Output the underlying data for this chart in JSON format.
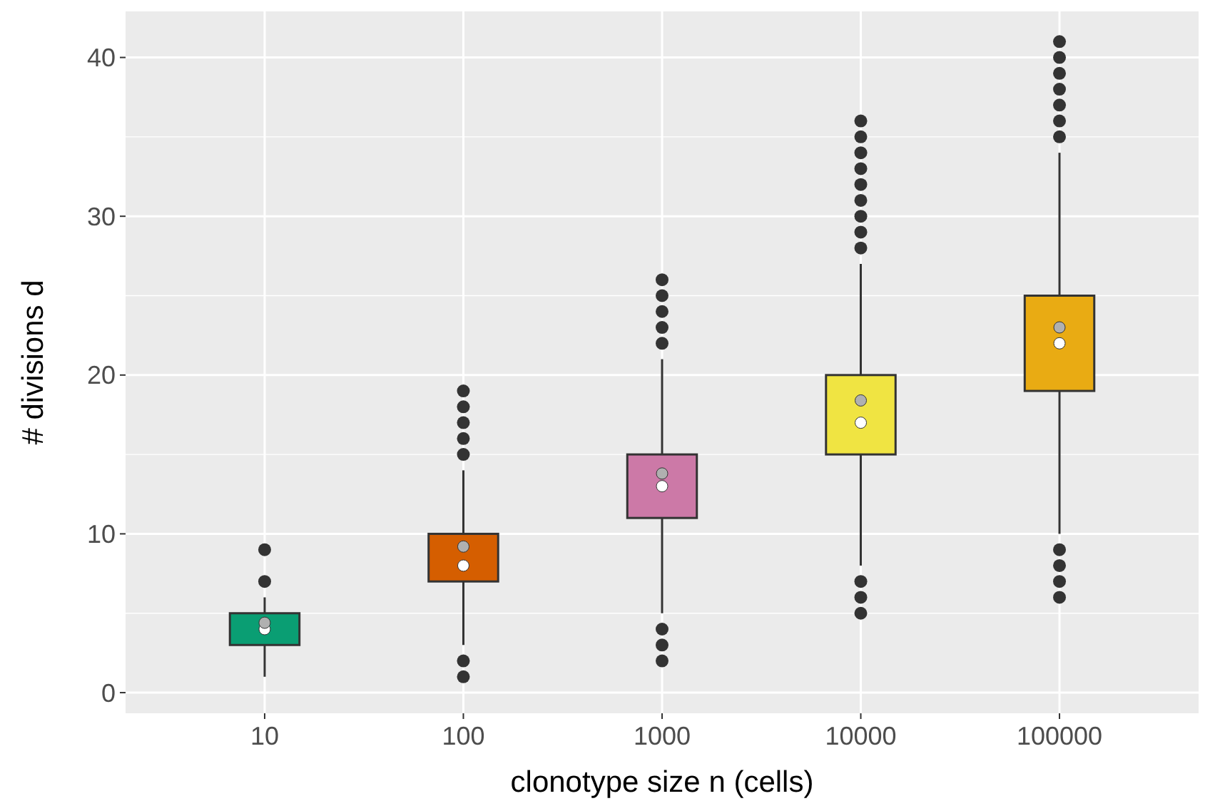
{
  "chart_data": {
    "type": "box",
    "xlabel": "clonotype size n (cells)",
    "ylabel": "# divisions d",
    "categories": [
      "10",
      "100",
      "1000",
      "10000",
      "100000"
    ],
    "colors": [
      "#0a9e73",
      "#d55e00",
      "#cc79a7",
      "#f0e442",
      "#e9ab13"
    ],
    "boxes": [
      {
        "low": 1,
        "q1": 3,
        "median": 4,
        "q3": 5,
        "high": 6,
        "mean": 4.4,
        "outliers": [
          7,
          9
        ]
      },
      {
        "low": 3,
        "q1": 7,
        "median": 8,
        "q3": 10,
        "high": 14,
        "mean": 9.2,
        "outliers": [
          1,
          2,
          15,
          16,
          17,
          18,
          19
        ]
      },
      {
        "low": 5,
        "q1": 11,
        "median": 13,
        "q3": 15,
        "high": 21,
        "mean": 13.8,
        "outliers": [
          2,
          3,
          4,
          22,
          23,
          24,
          25,
          26
        ]
      },
      {
        "low": 8,
        "q1": 15,
        "median": 17,
        "q3": 20,
        "high": 27,
        "mean": 18.4,
        "outliers": [
          5,
          6,
          7,
          28,
          29,
          30,
          31,
          32,
          33,
          34,
          35,
          36
        ]
      },
      {
        "low": 10,
        "q1": 19,
        "median": 22,
        "q3": 25,
        "high": 34,
        "mean": 23,
        "outliers": [
          6,
          7,
          8,
          9,
          35,
          36,
          37,
          38,
          39,
          40,
          41
        ]
      }
    ],
    "ylim": [
      -1.3,
      42.9
    ],
    "yticks": [
      0,
      10,
      20,
      30,
      40
    ],
    "grid": true
  }
}
